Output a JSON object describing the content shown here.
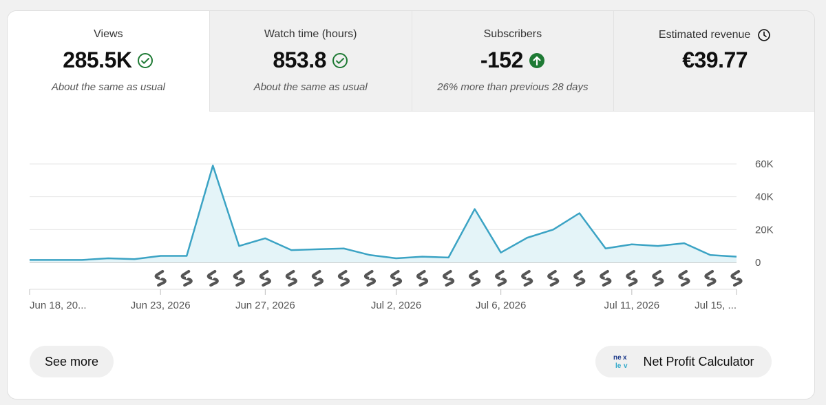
{
  "tabs": [
    {
      "label": "Views",
      "value": "285.5K",
      "subtitle": "About the same as usual",
      "icon": "check-circle-icon"
    },
    {
      "label": "Watch time (hours)",
      "value": "853.8",
      "subtitle": "About the same as usual",
      "icon": "check-circle-icon"
    },
    {
      "label": "Subscribers",
      "value": "-152",
      "subtitle": "26% more than previous 28 days",
      "icon": "arrow-up-circle-icon"
    },
    {
      "label": "Estimated revenue",
      "value": "€39.77",
      "subtitle": "",
      "icon": "clock-icon"
    }
  ],
  "colors": {
    "line": "#3ba3c4",
    "fill": "#e4f4f8",
    "check": "#1e7a34",
    "up": "#1e7a34",
    "grid": "#e5e5e5",
    "axis": "#606060"
  },
  "chart_data": {
    "type": "area",
    "x": [
      "Jun 18, 2026",
      "Jun 19, 2026",
      "Jun 20, 2026",
      "Jun 21, 2026",
      "Jun 22, 2026",
      "Jun 23, 2026",
      "Jun 24, 2026",
      "Jun 25, 2026",
      "Jun 26, 2026",
      "Jun 27, 2026",
      "Jun 28, 2026",
      "Jun 29, 2026",
      "Jun 30, 2026",
      "Jul 1, 2026",
      "Jul 2, 2026",
      "Jul 3, 2026",
      "Jul 4, 2026",
      "Jul 5, 2026",
      "Jul 6, 2026",
      "Jul 7, 2026",
      "Jul 8, 2026",
      "Jul 9, 2026",
      "Jul 10, 2026",
      "Jul 11, 2026",
      "Jul 12, 2026",
      "Jul 13, 2026",
      "Jul 14, 2026",
      "Jul 15, 2026"
    ],
    "series": [
      {
        "values": [
          1500,
          1500,
          1500,
          2500,
          2000,
          4000,
          4000,
          59000,
          10000,
          14700,
          7500,
          8000,
          8500,
          4500,
          2500,
          3500,
          3000,
          32500,
          6000,
          15000,
          20000,
          30000,
          8500,
          11000,
          10000,
          11700,
          4500,
          3500
        ]
      }
    ],
    "x_tick_labels": [
      {
        "index": 0,
        "label": "Jun 18, 20..."
      },
      {
        "index": 5,
        "label": "Jun 23, 2026"
      },
      {
        "index": 9,
        "label": "Jun 27, 2026"
      },
      {
        "index": 14,
        "label": "Jul 2, 2026"
      },
      {
        "index": 18,
        "label": "Jul 6, 2026"
      },
      {
        "index": 23,
        "label": "Jul 11, 2026"
      },
      {
        "index": 27,
        "label": "Jul 15, ..."
      }
    ],
    "y_ticks": [
      {
        "value": 0,
        "label": "0"
      },
      {
        "value": 20000,
        "label": "20K"
      },
      {
        "value": 40000,
        "label": "40K"
      },
      {
        "value": 60000,
        "label": "60K"
      }
    ],
    "ylim": [
      0,
      60000
    ],
    "marker_start_index": 5,
    "marker_icon": "shorts-icon",
    "grid": true,
    "y_axis_side": "right"
  },
  "buttons": {
    "see_more": "See more",
    "net_profit": "Net Profit Calculator"
  },
  "nexlev_logo_text": "nexlev"
}
